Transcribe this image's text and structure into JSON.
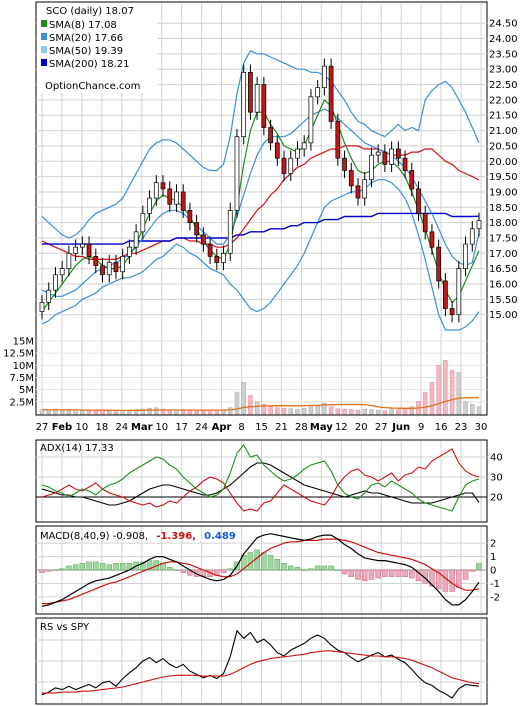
{
  "chart_data": [
    {
      "id": "price",
      "type": "candlestick",
      "title": "SCO (daily) 18.07",
      "legend": [
        {
          "label": "SMA(8) 17.08",
          "color": "#1e8c1e"
        },
        {
          "label": "SMA(20) 17.66",
          "color": "#3a8fd6"
        },
        {
          "label": "SMA(50) 19.39",
          "color": "#8ccaf0"
        },
        {
          "label": "SMA(200) 18.21",
          "color": "#0000cc"
        }
      ],
      "watermark": "OptionChance.com",
      "y_ticks": [
        "24.50",
        "24.00",
        "23.50",
        "23.00",
        "22.50",
        "22.00",
        "21.50",
        "21.00",
        "20.50",
        "20.00",
        "19.50",
        "19.00",
        "18.50",
        "18.00",
        "17.50",
        "17.00",
        "16.50",
        "16.00",
        "15.50",
        "15.00"
      ],
      "ylim": [
        14.5,
        24.8
      ],
      "volume_ticks": [
        "15M",
        "12.5M",
        "10M",
        "7.5M",
        "5M",
        "2.5M"
      ],
      "volume_lim": [
        0,
        16000000
      ],
      "x_ticks": [
        "27",
        "Feb",
        "10",
        "18",
        "24",
        "Mar",
        "10",
        "17",
        "24",
        "Apr",
        "8",
        "15",
        "21",
        "28",
        "May",
        "12",
        "20",
        "27",
        "Jun",
        "9",
        "16",
        "23",
        "30"
      ],
      "close": [
        15.4,
        15.8,
        16.3,
        16.5,
        17.0,
        17.2,
        17.3,
        16.9,
        16.6,
        16.3,
        16.7,
        16.4,
        16.9,
        17.2,
        17.7,
        18.3,
        18.8,
        19.3,
        19.1,
        18.6,
        19.0,
        18.4,
        18.0,
        17.6,
        17.3,
        16.9,
        16.7,
        17.0,
        18.4,
        20.8,
        22.9,
        21.6,
        22.5,
        21.1,
        20.6,
        20.1,
        19.6,
        20.1,
        20.4,
        20.6,
        22.1,
        22.4,
        23.1,
        21.3,
        20.1,
        19.7,
        19.2,
        18.8,
        19.4,
        20.2,
        20.3,
        19.9,
        20.4,
        20.1,
        19.7,
        19.1,
        18.3,
        17.7,
        17.2,
        16.1,
        15.2,
        15.0,
        16.5,
        17.3,
        17.8,
        18.07
      ],
      "sma8": [
        15.1,
        15.4,
        15.7,
        16.0,
        16.3,
        16.6,
        16.8,
        16.9,
        16.8,
        16.6,
        16.5,
        16.5,
        16.6,
        16.9,
        17.3,
        17.8,
        18.3,
        18.7,
        18.9,
        18.8,
        18.7,
        18.5,
        18.2,
        17.8,
        17.4,
        17.1,
        16.9,
        16.8,
        17.3,
        18.5,
        19.9,
        21.0,
        21.6,
        21.6,
        21.2,
        20.9,
        20.5,
        20.4,
        20.3,
        20.5,
        21.0,
        21.5,
        22.0,
        21.8,
        21.2,
        20.6,
        20.1,
        19.7,
        19.6,
        19.7,
        19.9,
        20.0,
        20.0,
        19.8,
        19.5,
        19.0,
        18.4,
        17.8,
        17.1,
        16.4,
        15.8,
        15.4,
        15.6,
        16.1,
        16.6,
        17.08
      ],
      "sma20": [
        15.8,
        15.7,
        15.6,
        15.6,
        15.7,
        15.8,
        16.0,
        16.2,
        16.4,
        16.5,
        16.6,
        16.7,
        16.8,
        17.0,
        17.2,
        17.5,
        17.8,
        18.1,
        18.3,
        18.4,
        18.4,
        18.3,
        18.1,
        17.9,
        17.7,
        17.5,
        17.3,
        17.3,
        17.6,
        18.2,
        18.9,
        19.6,
        20.2,
        20.6,
        20.8,
        20.8,
        20.8,
        20.9,
        21.1,
        21.3,
        21.5,
        21.6,
        21.7,
        21.6,
        21.4,
        21.2,
        21.0,
        20.8,
        20.6,
        20.5,
        20.4,
        20.3,
        20.2,
        20.0,
        19.8,
        19.5,
        19.1,
        18.7,
        18.3,
        17.8,
        17.3,
        16.9,
        16.7,
        16.6,
        16.7,
        17.66
      ],
      "bb_upper": [
        18.2,
        18.0,
        17.8,
        17.6,
        17.5,
        17.6,
        17.8,
        18.1,
        18.3,
        18.4,
        18.5,
        18.6,
        18.8,
        19.2,
        19.6,
        20.0,
        20.4,
        20.6,
        20.7,
        20.7,
        20.6,
        20.4,
        20.2,
        20.0,
        19.8,
        19.7,
        19.7,
        19.9,
        20.8,
        22.2,
        23.2,
        23.6,
        23.5,
        23.5,
        23.4,
        23.3,
        23.2,
        23.1,
        23.0,
        23.0,
        22.9,
        22.9,
        22.8,
        22.6,
        22.3,
        22.0,
        21.6,
        21.3,
        21.2,
        21.0,
        20.9,
        20.8,
        21.0,
        21.2,
        21.0,
        21.1,
        21.0,
        22.0,
        22.3,
        22.5,
        22.6,
        22.4,
        22.0,
        21.6,
        21.1,
        20.6
      ],
      "bb_lower": [
        14.7,
        14.8,
        15.0,
        15.1,
        15.2,
        15.3,
        15.5,
        15.6,
        15.7,
        15.9,
        16.0,
        16.1,
        16.2,
        16.2,
        16.3,
        16.4,
        16.6,
        16.8,
        16.9,
        17.1,
        17.3,
        17.2,
        17.0,
        16.9,
        16.7,
        16.5,
        16.4,
        16.3,
        16.0,
        15.8,
        15.5,
        15.2,
        15.1,
        15.2,
        15.4,
        15.7,
        16.0,
        16.3,
        16.6,
        17.0,
        17.5,
        18.0,
        18.5,
        18.7,
        18.8,
        18.9,
        19.0,
        19.0,
        19.1,
        19.3,
        19.4,
        19.4,
        19.3,
        19.1,
        18.8,
        18.3,
        17.6,
        16.8,
        15.9,
        15.0,
        14.5,
        14.5,
        14.5,
        14.6,
        14.8,
        15.1
      ],
      "sma50": [
        17.4,
        17.3,
        17.2,
        17.1,
        17.0,
        16.9,
        16.9,
        16.8,
        16.8,
        16.8,
        16.8,
        16.8,
        16.9,
        17.0,
        17.0,
        17.1,
        17.2,
        17.3,
        17.4,
        17.4,
        17.5,
        17.5,
        17.4,
        17.4,
        17.3,
        17.3,
        17.2,
        17.2,
        17.3,
        17.5,
        17.8,
        18.1,
        18.4,
        18.6,
        18.9,
        19.1,
        19.4,
        19.6,
        19.8,
        19.9,
        20.1,
        20.2,
        20.3,
        20.4,
        20.4,
        20.5,
        20.5,
        20.5,
        20.4,
        20.4,
        20.4,
        20.3,
        20.2,
        20.2,
        20.2,
        20.3,
        20.3,
        20.4,
        20.4,
        20.2,
        20.0,
        19.9,
        19.7,
        19.6,
        19.5,
        19.39
      ],
      "sma200": [
        17.3,
        17.3,
        17.3,
        17.3,
        17.3,
        17.3,
        17.3,
        17.3,
        17.3,
        17.3,
        17.3,
        17.3,
        17.3,
        17.4,
        17.4,
        17.4,
        17.4,
        17.4,
        17.4,
        17.4,
        17.5,
        17.5,
        17.5,
        17.5,
        17.5,
        17.5,
        17.5,
        17.5,
        17.5,
        17.6,
        17.6,
        17.7,
        17.7,
        17.7,
        17.8,
        17.8,
        17.8,
        17.9,
        17.9,
        18.0,
        18.0,
        18.0,
        18.1,
        18.1,
        18.1,
        18.2,
        18.2,
        18.2,
        18.2,
        18.2,
        18.3,
        18.3,
        18.3,
        18.3,
        18.3,
        18.3,
        18.3,
        18.3,
        18.3,
        18.3,
        18.3,
        18.2,
        18.2,
        18.2,
        18.2,
        18.21
      ],
      "volume": [
        0.9,
        0.8,
        1.0,
        0.7,
        0.9,
        0.8,
        0.7,
        0.6,
        0.6,
        0.7,
        0.6,
        0.5,
        0.7,
        0.8,
        0.9,
        1.0,
        1.2,
        1.3,
        1.0,
        0.9,
        0.8,
        0.9,
        0.7,
        0.6,
        0.6,
        0.7,
        0.8,
        0.9,
        1.3,
        4.5,
        6.5,
        3.8,
        2.5,
        2.0,
        1.6,
        1.3,
        1.2,
        1.1,
        1.0,
        1.2,
        1.8,
        1.6,
        2.2,
        1.5,
        1.1,
        1.0,
        0.9,
        0.8,
        1.0,
        0.9,
        0.8,
        0.7,
        1.0,
        0.9,
        1.2,
        1.5,
        2.6,
        4.5,
        6.5,
        10.0,
        11.0,
        9.0,
        8.5,
        2.5,
        2.0,
        1.5
      ],
      "volume_scale": "M"
    },
    {
      "id": "adx",
      "type": "line",
      "title": "ADX(14) 17.33",
      "y_ticks": [
        "40",
        "30",
        "20"
      ],
      "ylim": [
        8,
        48
      ],
      "series": [
        {
          "color": "#000000",
          "values": [
            24,
            23,
            22,
            21,
            21,
            20,
            20,
            19,
            18,
            17,
            16,
            16,
            17,
            18,
            20,
            22,
            24,
            25,
            26,
            26,
            25,
            24,
            23,
            22,
            21,
            21,
            22,
            24,
            26,
            29,
            32,
            35,
            37,
            37,
            36,
            34,
            32,
            30,
            28,
            26,
            25,
            24,
            23,
            22,
            21,
            20,
            21,
            22,
            23,
            22,
            22,
            21,
            20,
            19,
            18,
            17,
            17,
            17,
            17,
            18,
            19,
            20,
            21,
            22,
            22,
            17.33
          ]
        },
        {
          "color": "#d01010",
          "values": [
            20,
            21,
            22,
            24,
            26,
            24,
            23,
            25,
            27,
            24,
            22,
            21,
            20,
            18,
            17,
            16,
            17,
            15,
            16,
            18,
            17,
            20,
            23,
            25,
            28,
            30,
            29,
            27,
            22,
            17,
            13,
            14,
            13,
            17,
            18,
            22,
            26,
            24,
            22,
            20,
            18,
            17,
            16,
            20,
            26,
            30,
            33,
            34,
            31,
            30,
            28,
            30,
            32,
            28,
            31,
            32,
            35,
            34,
            38,
            40,
            42,
            44,
            37,
            33,
            31,
            30
          ]
        },
        {
          "color": "#1e8c1e",
          "values": [
            26,
            25,
            23,
            22,
            20,
            22,
            24,
            23,
            21,
            24,
            26,
            27,
            29,
            32,
            34,
            36,
            38,
            40,
            39,
            36,
            34,
            30,
            27,
            24,
            22,
            20,
            21,
            24,
            32,
            42,
            46,
            40,
            41,
            36,
            33,
            30,
            28,
            29,
            31,
            34,
            36,
            37,
            38,
            33,
            26,
            22,
            20,
            19,
            22,
            26,
            27,
            25,
            28,
            26,
            24,
            22,
            19,
            17,
            16,
            15,
            14,
            13,
            20,
            26,
            28,
            29
          ]
        }
      ]
    },
    {
      "id": "macd",
      "type": "line",
      "title": "MACD(8,40,9) -0.908,",
      "title_part2": "-1.396,",
      "title_part3": "0.489",
      "y_ticks": [
        "2",
        "1",
        "0",
        "-1",
        "-2"
      ],
      "ylim": [
        -3.2,
        3.2
      ],
      "macd": [
        -2.7,
        -2.6,
        -2.4,
        -2.2,
        -1.9,
        -1.6,
        -1.3,
        -1.0,
        -0.8,
        -0.7,
        -0.6,
        -0.4,
        -0.2,
        0.0,
        0.3,
        0.5,
        0.8,
        1.0,
        1.0,
        0.8,
        0.6,
        0.3,
        0.0,
        -0.3,
        -0.5,
        -0.7,
        -0.8,
        -0.7,
        -0.4,
        0.3,
        1.2,
        1.8,
        2.4,
        2.6,
        2.7,
        2.6,
        2.5,
        2.4,
        2.3,
        2.2,
        2.3,
        2.5,
        2.6,
        2.6,
        2.3,
        1.9,
        1.6,
        1.2,
        0.9,
        0.8,
        0.7,
        0.7,
        0.6,
        0.5,
        0.4,
        0.2,
        -0.2,
        -0.6,
        -1.1,
        -1.6,
        -2.2,
        -2.6,
        -2.6,
        -2.2,
        -1.6,
        -0.908
      ],
      "signal": [
        -2.5,
        -2.5,
        -2.4,
        -2.3,
        -2.2,
        -2.0,
        -1.8,
        -1.6,
        -1.4,
        -1.2,
        -1.0,
        -0.9,
        -0.7,
        -0.5,
        -0.3,
        -0.1,
        0.1,
        0.3,
        0.5,
        0.6,
        0.6,
        0.5,
        0.4,
        0.2,
        0.0,
        -0.2,
        -0.4,
        -0.5,
        -0.5,
        -0.3,
        0.1,
        0.5,
        0.9,
        1.3,
        1.6,
        1.8,
        2.0,
        2.1,
        2.1,
        2.2,
        2.2,
        2.2,
        2.3,
        2.3,
        2.3,
        2.2,
        2.1,
        1.9,
        1.7,
        1.5,
        1.3,
        1.2,
        1.1,
        1.0,
        0.9,
        0.8,
        0.6,
        0.4,
        0.1,
        -0.2,
        -0.6,
        -1.0,
        -1.3,
        -1.5,
        -1.5,
        -1.396
      ]
    },
    {
      "id": "rs",
      "type": "line",
      "title": "RS vs SPY",
      "ylim": [
        0,
        10
      ],
      "series": [
        {
          "color": "#000000",
          "values": [
            1.0,
            1.3,
            1.8,
            1.6,
            2.0,
            1.6,
            1.9,
            2.2,
            1.8,
            2.4,
            2.6,
            2.0,
            2.9,
            3.6,
            4.2,
            5.0,
            5.4,
            4.8,
            5.3,
            4.6,
            4.2,
            4.6,
            3.8,
            3.4,
            3.0,
            3.3,
            2.9,
            3.5,
            5.5,
            8.6,
            7.7,
            8.4,
            7.2,
            7.6,
            6.9,
            6.0,
            5.6,
            6.3,
            6.7,
            7.1,
            7.7,
            8.1,
            7.7,
            6.9,
            6.3,
            6.0,
            5.4,
            4.9,
            5.3,
            5.7,
            6.0,
            5.5,
            5.7,
            5.2,
            4.8,
            4.0,
            3.1,
            2.4,
            2.1,
            1.5,
            1.1,
            0.6,
            1.7,
            2.2,
            2.1,
            2.0
          ]
        },
        {
          "color": "#d01010",
          "values": [
            1.2,
            1.2,
            1.2,
            1.3,
            1.3,
            1.3,
            1.4,
            1.4,
            1.5,
            1.6,
            1.7,
            1.8,
            1.9,
            2.1,
            2.3,
            2.5,
            2.7,
            2.9,
            3.1,
            3.2,
            3.3,
            3.3,
            3.3,
            3.3,
            3.2,
            3.2,
            3.2,
            3.2,
            3.4,
            3.8,
            4.2,
            4.6,
            4.9,
            5.1,
            5.3,
            5.4,
            5.5,
            5.6,
            5.7,
            5.8,
            6.0,
            6.1,
            6.2,
            6.2,
            6.1,
            6.0,
            5.9,
            5.8,
            5.7,
            5.6,
            5.6,
            5.5,
            5.5,
            5.4,
            5.3,
            5.1,
            4.8,
            4.5,
            4.2,
            3.8,
            3.4,
            3.0,
            2.8,
            2.6,
            2.4,
            2.3
          ]
        }
      ]
    }
  ]
}
